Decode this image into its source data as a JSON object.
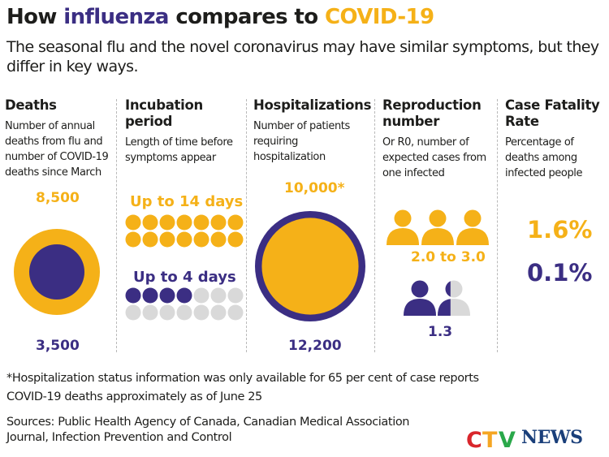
{
  "header": {
    "title_prefix": "How ",
    "title_flu": "influenza",
    "title_middle": " compares to ",
    "title_covid": "COVID-19",
    "subtitle": "The seasonal flu and the novel coronavirus may have similar symptoms, but they differ in key ways."
  },
  "colors": {
    "covid": "#f5b118",
    "flu": "#3b2e83",
    "empty": "#d9d9d9"
  },
  "columns": [
    {
      "title": "Deaths",
      "desc": "Number of annual deaths from flu and number of COVID-19 deaths since March"
    },
    {
      "title": "Incubation period",
      "desc": "Length of time before symptoms appear"
    },
    {
      "title": "Hospitalizations",
      "desc": "Number of patients requiring hospitalization"
    },
    {
      "title": "Reproduction number",
      "desc": "Or R0, number of expected cases from one infected"
    },
    {
      "title": "Case Fatality Rate",
      "desc": "Percentage of deaths among infected people"
    }
  ],
  "chart_data": {
    "type": "infographic",
    "deaths": {
      "covid": 8500,
      "flu": 3500,
      "covid_label": "8,500",
      "flu_label": "3,500"
    },
    "incubation": {
      "covid_days": 14,
      "flu_days": 4,
      "total_days": 14,
      "covid_label": "Up to 14 days",
      "flu_label": "Up to 4 days"
    },
    "hospitalizations": {
      "covid": 10000,
      "flu": 12200,
      "covid_label": "10,000*",
      "flu_label": "12,200"
    },
    "reproduction": {
      "covid_people": 3,
      "flu_people": 1.3,
      "covid_label": "2.0 to 3.0",
      "flu_label": "1.3"
    },
    "fatality": {
      "covid_pct": 1.6,
      "flu_pct": 0.1,
      "covid_label": "1.6%",
      "flu_label": "0.1%"
    }
  },
  "footer": {
    "note1": "*Hospitalization status information was only available for 65 per cent of case reports",
    "note2": "COVID-19 deaths approximately as of June 25",
    "sources1": "Sources: Public Health Agency of Canada,  Canadian Medical Association",
    "sources2": "Journal, Infection Prevention and Control",
    "logo_text": "NEWS"
  }
}
